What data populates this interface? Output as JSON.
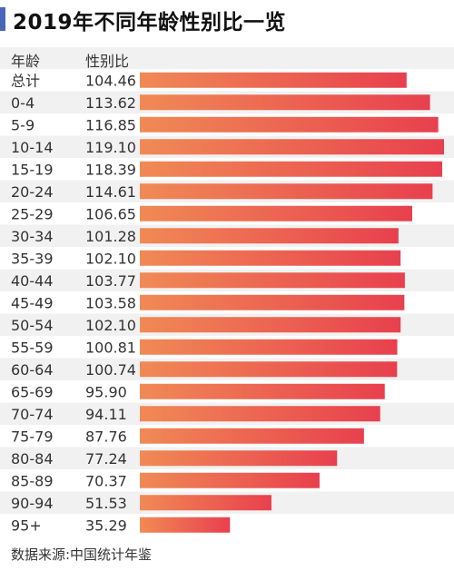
{
  "title": "2019年不同年龄性别比一览",
  "header": {
    "age_label": "年龄",
    "ratio_label": "性别比"
  },
  "source": "数据来源:中国统计年鉴",
  "colors": {
    "accent_bar": "#4a66b8",
    "bar_start": "#f08a55",
    "bar_end": "#e8404e",
    "stripe": "#f1f1f1"
  },
  "chart_data": {
    "type": "bar",
    "orientation": "horizontal",
    "categories": [
      "总计",
      "0-4",
      "5-9",
      "10-14",
      "15-19",
      "20-24",
      "25-29",
      "30-34",
      "35-39",
      "40-44",
      "45-49",
      "50-54",
      "55-59",
      "60-64",
      "65-69",
      "70-74",
      "75-79",
      "80-84",
      "85-89",
      "90-94",
      "95+"
    ],
    "values": [
      104.46,
      113.62,
      116.85,
      119.1,
      118.39,
      114.61,
      106.65,
      101.28,
      102.1,
      103.77,
      103.58,
      102.1,
      100.81,
      100.74,
      95.9,
      94.11,
      87.76,
      77.24,
      70.37,
      51.53,
      35.29
    ],
    "labels": [
      "104.46",
      "113.62",
      "116.85",
      "119.10",
      "118.39",
      "114.61",
      "106.65",
      "101.28",
      "102.10",
      "103.77",
      "103.58",
      "102.10",
      "100.81",
      "100.74",
      "95.90",
      "94.11",
      "87.76",
      "77.24",
      "70.37",
      "51.53",
      "35.29"
    ],
    "xlim": [
      0,
      119.1
    ],
    "grid": false,
    "legend": "none"
  }
}
